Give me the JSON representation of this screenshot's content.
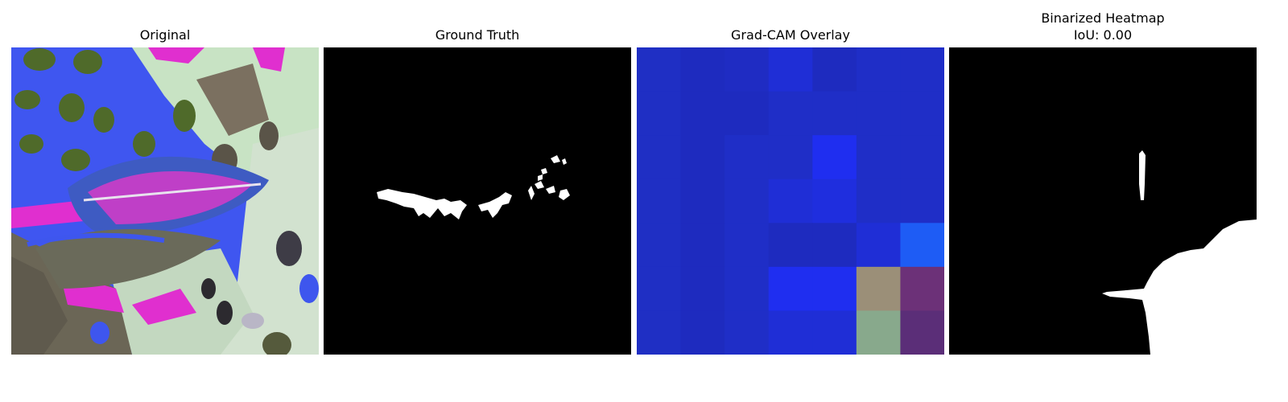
{
  "panels": [
    {
      "title": "Original"
    },
    {
      "title": "Ground Truth"
    },
    {
      "title": "Grad-CAM Overlay"
    },
    {
      "title": "Binarized Heatmap",
      "subtitle": "IoU: 0.00"
    }
  ],
  "gradcam": {
    "rows": 7,
    "cols": 7,
    "cells": [
      [
        "#1f2fc4",
        "#1e2bbf",
        "#1f2cc3",
        "#1f2ed6",
        "#1e2bbf",
        "#1f2ec7",
        "#1f2ec7"
      ],
      [
        "#1f2fc4",
        "#1e2bbf",
        "#1e2bbf",
        "#1f2ec7",
        "#1f2ec7",
        "#1f2ec7",
        "#1f2ec7"
      ],
      [
        "#1f2fc4",
        "#1e2bbf",
        "#1f2ec7",
        "#1f2ec7",
        "#1f2ef0",
        "#1f2ec7",
        "#1f2ec7"
      ],
      [
        "#1f2fc4",
        "#1e2bbf",
        "#1f2ec7",
        "#1f2ed6",
        "#1f2ede",
        "#1f2ec7",
        "#1f2ec7"
      ],
      [
        "#1f2fc4",
        "#1e2bbf",
        "#1f2ec7",
        "#1e2bbf",
        "#1e2bbf",
        "#1f2ed6",
        "#1e5cf5"
      ],
      [
        "#1f2fc4",
        "#1e2bbf",
        "#1f2ec7",
        "#1f2ef0",
        "#1f2ef0",
        "#9b8f78",
        "#6c3178"
      ],
      [
        "#1f2fc4",
        "#1e2bbf",
        "#1f2ec7",
        "#1f2ed6",
        "#1f2ed6",
        "#88a98c",
        "#5b2e78"
      ]
    ]
  }
}
